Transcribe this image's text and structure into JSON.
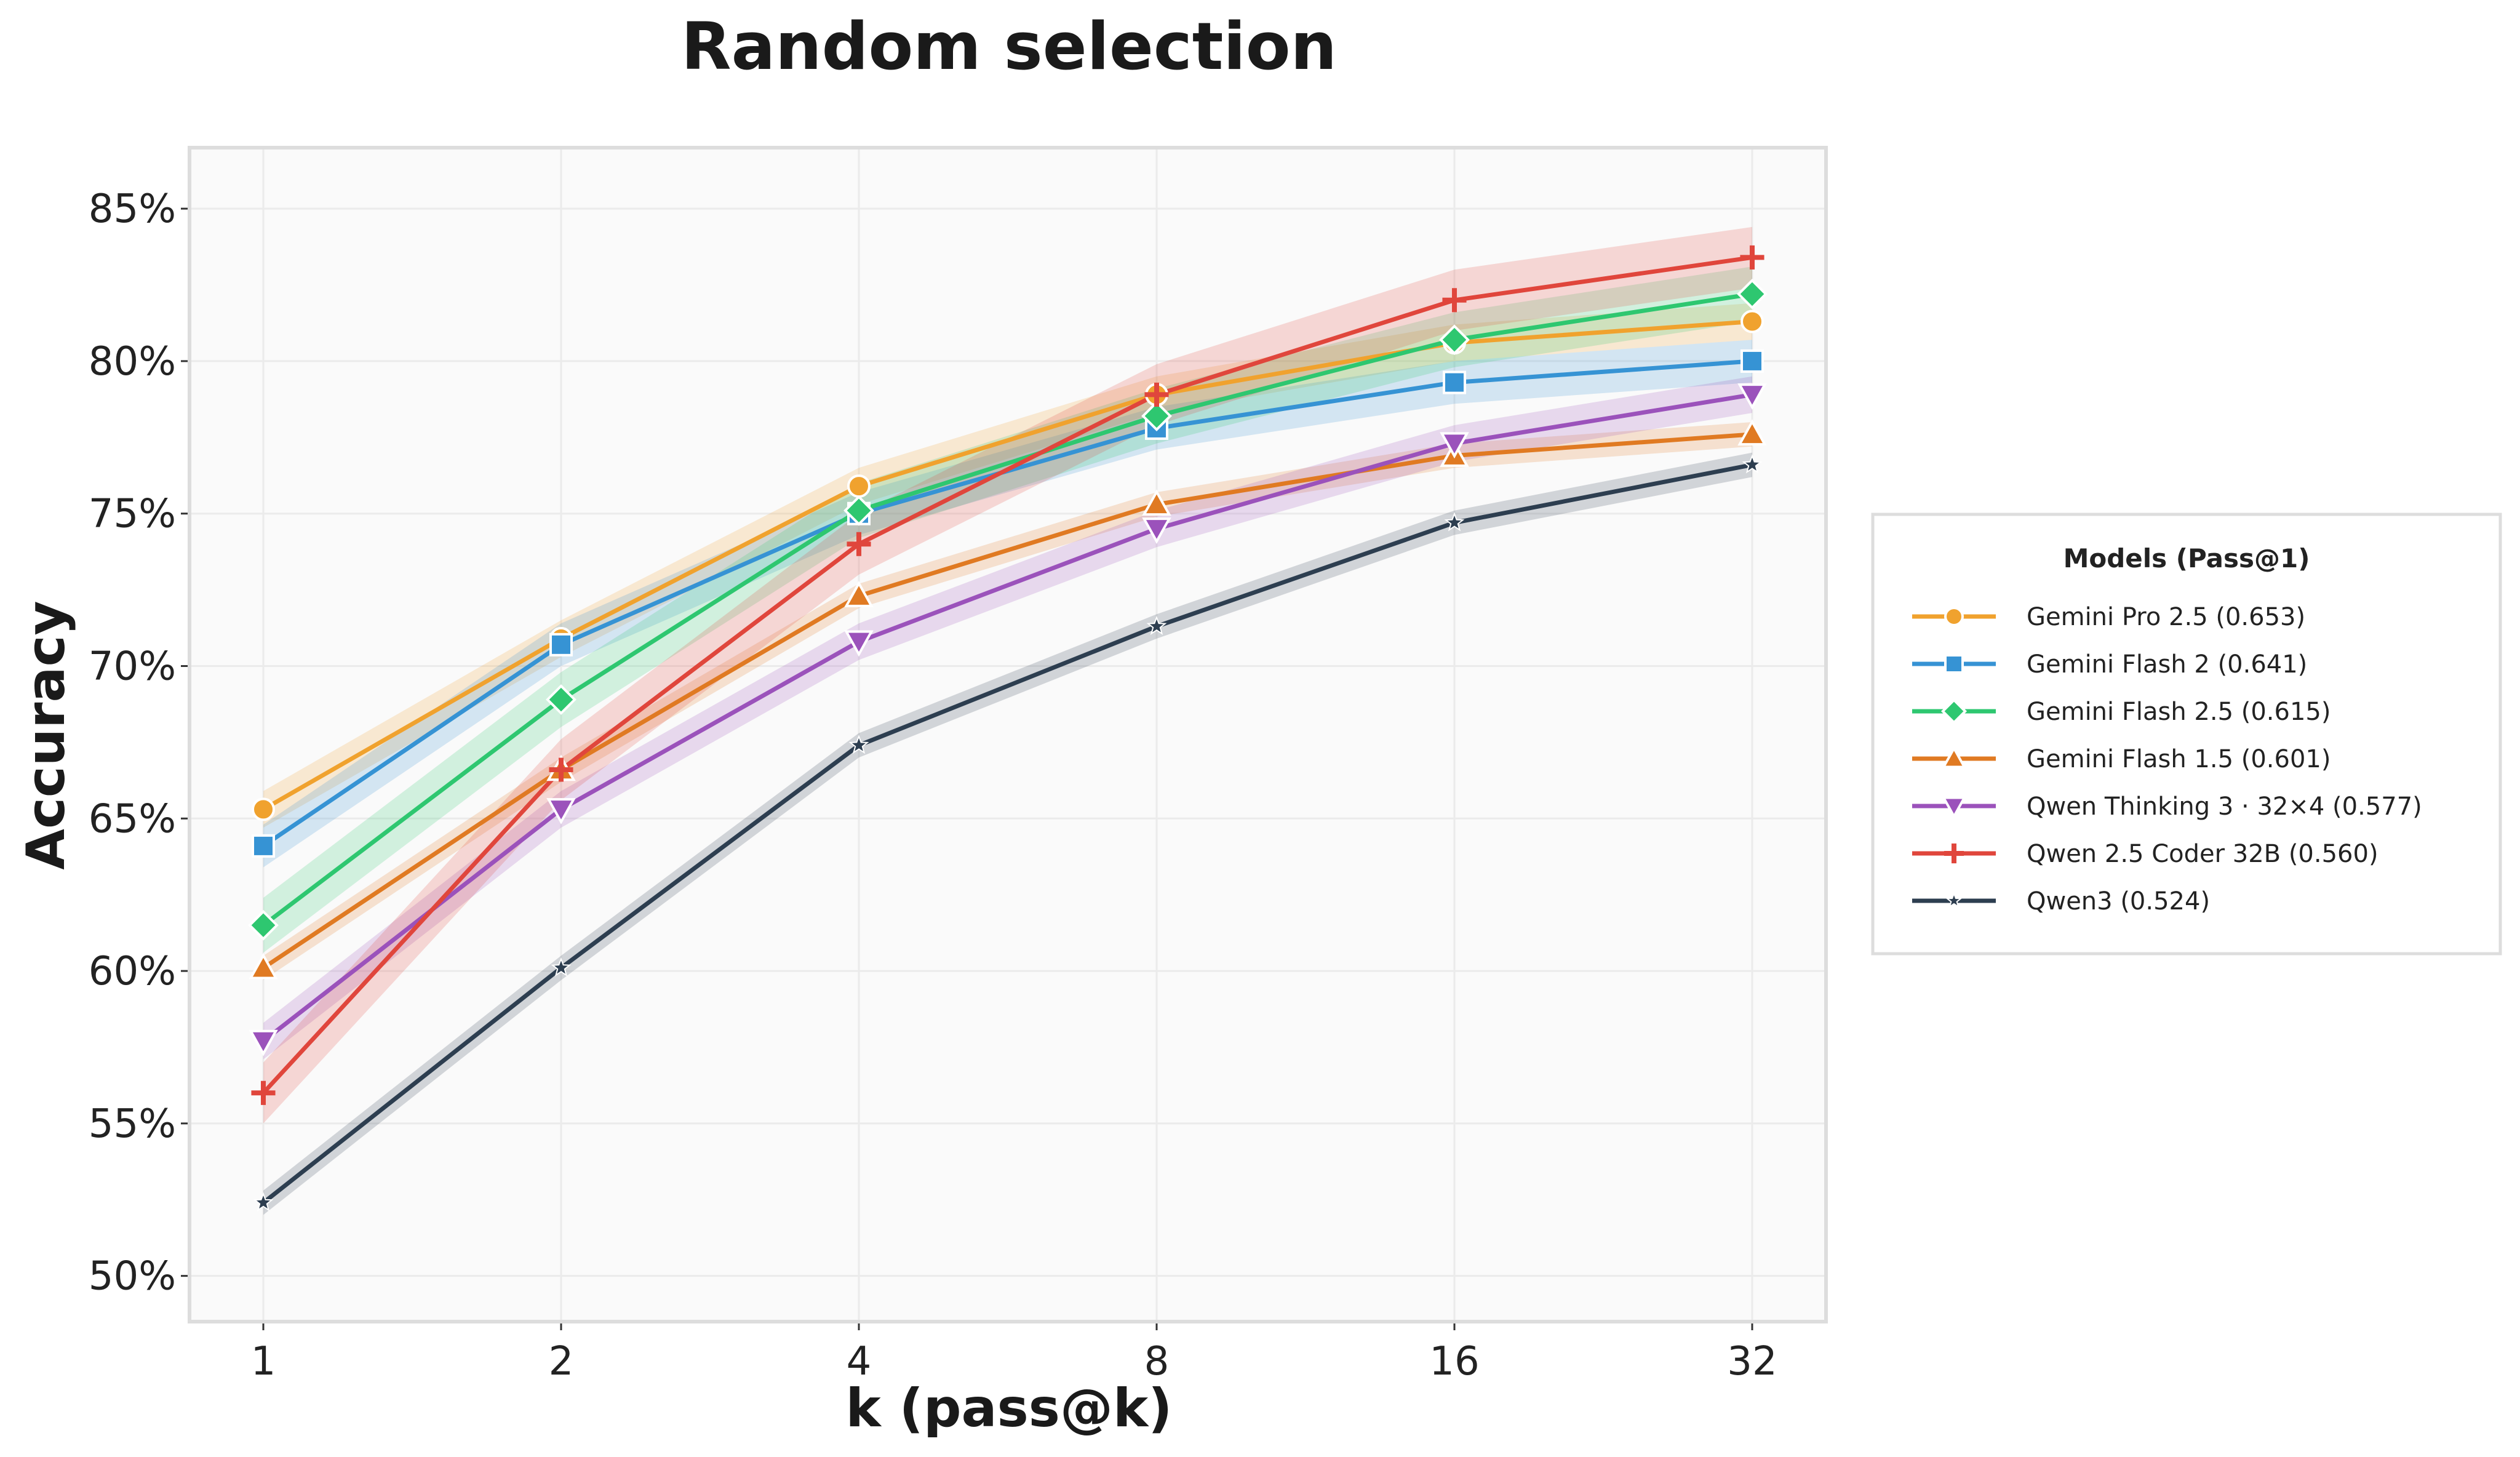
{
  "chart_data": {
    "type": "line",
    "title": "Random selection",
    "xlabel": "k (pass@k)",
    "ylabel": "Accuracy",
    "x": [
      1,
      2,
      4,
      8,
      16,
      32
    ],
    "x_tick_labels": [
      "1",
      "2",
      "4",
      "8",
      "16",
      "32"
    ],
    "x_scale": "log2",
    "ylim": [
      0.485,
      0.87
    ],
    "y_ticks": [
      0.5,
      0.55,
      0.6,
      0.65,
      0.7,
      0.75,
      0.8,
      0.85
    ],
    "y_tick_labels": [
      "50%",
      "55%",
      "60%",
      "65%",
      "70%",
      "75%",
      "80%",
      "85%"
    ],
    "grid": true,
    "legend_title": "Models (Pass@1)",
    "legend_position": "right, outside plot",
    "series": [
      {
        "name": "Gemini Pro 2.5 (0.653)",
        "color": "#f0a22e",
        "marker": "circle",
        "values": [
          0.653,
          0.709,
          0.759,
          0.789,
          0.806,
          0.813
        ],
        "band": 0.006
      },
      {
        "name": "Gemini Flash 2 (0.641)",
        "color": "#3693d4",
        "marker": "square",
        "values": [
          0.641,
          0.707,
          0.75,
          0.778,
          0.793,
          0.8
        ],
        "band": 0.007
      },
      {
        "name": "Gemini Flash 2.5 (0.615)",
        "color": "#2ec770",
        "marker": "diamond",
        "values": [
          0.615,
          0.689,
          0.751,
          0.782,
          0.807,
          0.822
        ],
        "band": 0.009
      },
      {
        "name": "Gemini Flash 1.5 (0.601)",
        "color": "#e07a22",
        "marker": "triangle-up",
        "values": [
          0.601,
          0.666,
          0.723,
          0.753,
          0.769,
          0.776
        ],
        "band": 0.004
      },
      {
        "name": "Qwen Thinking 3 · 32×4 (0.577)",
        "color": "#9b52bb",
        "marker": "triangle-down",
        "values": [
          0.577,
          0.653,
          0.708,
          0.745,
          0.773,
          0.789
        ],
        "band": 0.006
      },
      {
        "name": "Qwen 2.5 Coder 32B (0.560)",
        "color": "#e0463c",
        "marker": "plus",
        "values": [
          0.56,
          0.666,
          0.74,
          0.789,
          0.82,
          0.834
        ],
        "band": 0.01
      },
      {
        "name": "Qwen3 (0.524)",
        "color": "#2d3e50",
        "marker": "star",
        "values": [
          0.524,
          0.601,
          0.674,
          0.713,
          0.747,
          0.766
        ],
        "band": 0.004
      }
    ]
  }
}
